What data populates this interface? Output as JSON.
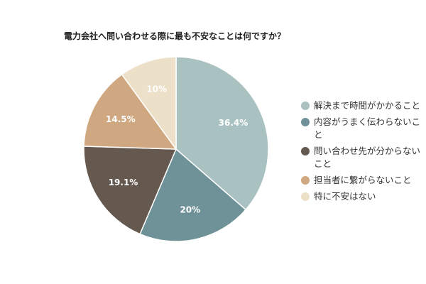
{
  "chart_data": {
    "type": "pie",
    "title": "電力会社へ問い合わせる際に最も不安なことは何ですか？",
    "categories": [
      "解決まで時間がかかること",
      "内容がうまく伝わらないこと",
      "問い合わせ先が分からないこと",
      "担当者に繋がらないこと",
      "特に不安はない"
    ],
    "values": [
      36.4,
      20,
      19.1,
      14.5,
      10
    ],
    "value_labels": [
      "36.4%",
      "20%",
      "19.1%",
      "14.5%",
      "10%"
    ],
    "colors": [
      "#a9c1c1",
      "#6e9297",
      "#65584f",
      "#cfa882",
      "#ede0c8"
    ],
    "legend_position": "right"
  }
}
